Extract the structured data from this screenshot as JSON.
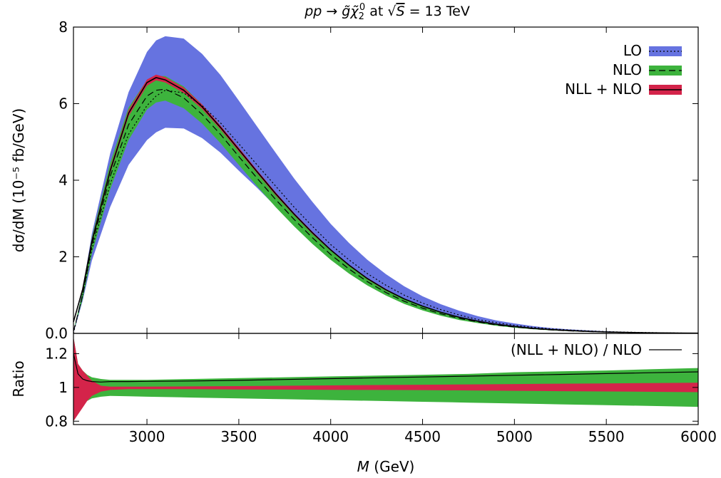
{
  "chart_data": [
    {
      "type": "area",
      "title": "pp → g̃χ̃₂⁰ at √S = 13 TeV",
      "title_parts": {
        "process": "pp → g̃χ̃",
        "sub": "2",
        "sup": "0",
        "at": " at ",
        "sqrt_symbol": "√",
        "energy_var": "S",
        "energy_value": " = 13 TeV"
      },
      "xlabel": "M (GeV)",
      "xlabel_parts": {
        "var": "M",
        "unit": " (GeV)"
      },
      "ylabel": "dσ/dM (10⁻⁵ fb/GeV)",
      "xlim": [
        2600,
        6000
      ],
      "ylim": [
        0,
        8
      ],
      "x_ticks": [
        "3000",
        "3500",
        "4000",
        "4500",
        "5000",
        "5500",
        "6000"
      ],
      "y_ticks": [
        "0.0",
        "2",
        "4",
        "6",
        "8"
      ],
      "legend_position": "top-right",
      "x": [
        2600,
        2650,
        2700,
        2800,
        2900,
        3000,
        3050,
        3100,
        3200,
        3300,
        3400,
        3500,
        3600,
        3700,
        3800,
        3900,
        4000,
        4100,
        4200,
        4300,
        4400,
        4500,
        4600,
        4700,
        4800,
        4900,
        5000,
        5100,
        5200,
        5300,
        5400,
        5500,
        5600,
        5700,
        5800,
        5900,
        6000
      ],
      "series": [
        {
          "name": "LO",
          "color": "#6673e0",
          "line_style": "dotted",
          "center": [
            0.0,
            1.0,
            2.2,
            3.9,
            5.2,
            5.95,
            6.2,
            6.35,
            6.28,
            5.95,
            5.5,
            4.95,
            4.4,
            3.85,
            3.3,
            2.8,
            2.32,
            1.92,
            1.56,
            1.26,
            1.0,
            0.79,
            0.62,
            0.48,
            0.36,
            0.28,
            0.21,
            0.16,
            0.12,
            0.09,
            0.065,
            0.047,
            0.034,
            0.024,
            0.016,
            0.01,
            0.006
          ],
          "lower": [
            0.0,
            0.85,
            1.9,
            3.3,
            4.4,
            5.05,
            5.25,
            5.37,
            5.35,
            5.1,
            4.72,
            4.25,
            3.8,
            3.32,
            2.86,
            2.43,
            2.02,
            1.67,
            1.36,
            1.1,
            0.87,
            0.69,
            0.54,
            0.42,
            0.32,
            0.24,
            0.18,
            0.14,
            0.1,
            0.075,
            0.055,
            0.04,
            0.028,
            0.02,
            0.013,
            0.008,
            0.005
          ],
          "upper": [
            0.0,
            1.15,
            2.6,
            4.7,
            6.3,
            7.35,
            7.65,
            7.76,
            7.7,
            7.3,
            6.75,
            6.08,
            5.4,
            4.72,
            4.05,
            3.44,
            2.86,
            2.36,
            1.92,
            1.55,
            1.23,
            0.97,
            0.76,
            0.59,
            0.45,
            0.34,
            0.26,
            0.19,
            0.14,
            0.105,
            0.078,
            0.056,
            0.04,
            0.028,
            0.019,
            0.012,
            0.007
          ]
        },
        {
          "name": "NLO",
          "color": "#3db33d",
          "line_style": "dashed",
          "center": [
            0.05,
            1.0,
            2.3,
            4.1,
            5.45,
            6.2,
            6.35,
            6.38,
            6.15,
            5.72,
            5.2,
            4.62,
            4.05,
            3.5,
            2.98,
            2.5,
            2.06,
            1.68,
            1.35,
            1.07,
            0.84,
            0.66,
            0.51,
            0.39,
            0.3,
            0.22,
            0.165,
            0.122,
            0.09,
            0.066,
            0.048,
            0.035,
            0.025,
            0.018,
            0.012,
            0.008,
            0.005
          ],
          "lower": [
            0.04,
            0.9,
            2.08,
            3.76,
            5.05,
            5.85,
            6.03,
            6.08,
            5.88,
            5.48,
            4.97,
            4.4,
            3.84,
            3.3,
            2.8,
            2.34,
            1.92,
            1.56,
            1.25,
            0.99,
            0.77,
            0.6,
            0.46,
            0.35,
            0.27,
            0.2,
            0.148,
            0.109,
            0.08,
            0.058,
            0.042,
            0.03,
            0.022,
            0.015,
            0.01,
            0.007,
            0.004
          ],
          "upper": [
            0.06,
            1.1,
            2.5,
            4.45,
            5.9,
            6.62,
            6.72,
            6.72,
            6.45,
            5.98,
            5.43,
            4.83,
            4.24,
            3.68,
            3.14,
            2.65,
            2.19,
            1.79,
            1.45,
            1.15,
            0.91,
            0.71,
            0.55,
            0.42,
            0.32,
            0.24,
            0.18,
            0.134,
            0.099,
            0.073,
            0.053,
            0.038,
            0.027,
            0.019,
            0.013,
            0.009,
            0.005
          ]
        },
        {
          "name": "NLL + NLO",
          "color": "#d4244a",
          "line_style": "solid",
          "center": [
            0.3,
            1.15,
            2.4,
            4.25,
            5.75,
            6.55,
            6.68,
            6.62,
            6.35,
            5.92,
            5.38,
            4.8,
            4.22,
            3.65,
            3.12,
            2.63,
            2.18,
            1.78,
            1.43,
            1.14,
            0.9,
            0.71,
            0.55,
            0.42,
            0.32,
            0.24,
            0.18,
            0.133,
            0.098,
            0.072,
            0.053,
            0.038,
            0.027,
            0.019,
            0.013,
            0.009,
            0.005
          ],
          "lower": [
            0.27,
            1.1,
            2.34,
            4.18,
            5.67,
            6.47,
            6.61,
            6.55,
            6.28,
            5.86,
            5.33,
            4.75,
            4.18,
            3.61,
            3.09,
            2.6,
            2.16,
            1.76,
            1.41,
            1.12,
            0.89,
            0.7,
            0.54,
            0.415,
            0.315,
            0.236,
            0.177,
            0.13,
            0.096,
            0.07,
            0.052,
            0.037,
            0.026,
            0.018,
            0.0125,
            0.0085,
            0.0048
          ],
          "upper": [
            0.33,
            1.2,
            2.46,
            4.32,
            5.83,
            6.63,
            6.76,
            6.69,
            6.42,
            5.98,
            5.43,
            4.85,
            4.26,
            3.69,
            3.15,
            2.66,
            2.2,
            1.8,
            1.45,
            1.16,
            0.91,
            0.72,
            0.56,
            0.425,
            0.325,
            0.244,
            0.183,
            0.136,
            0.1,
            0.074,
            0.054,
            0.039,
            0.028,
            0.02,
            0.0135,
            0.0095,
            0.0052
          ]
        }
      ]
    },
    {
      "type": "area",
      "ylabel": "Ratio",
      "xlabel": "M (GeV)",
      "xlim": [
        2600,
        6000
      ],
      "ylim": [
        0.78,
        1.32
      ],
      "y_ticks": [
        "0.8",
        "1",
        "1.2"
      ],
      "legend_position": "top-right",
      "x": [
        2600,
        2625,
        2650,
        2675,
        2700,
        2750,
        2800,
        2900,
        3000,
        3250,
        3500,
        3750,
        4000,
        4250,
        4500,
        4750,
        5000,
        5250,
        5500,
        5750,
        6000
      ],
      "series": [
        {
          "name": "",
          "color": "#3db33d",
          "role": "NLO uncertainty band",
          "lower": [
            0.8,
            0.86,
            0.9,
            0.92,
            0.935,
            0.945,
            0.95,
            0.948,
            0.945,
            0.94,
            0.935,
            0.93,
            0.925,
            0.92,
            0.915,
            0.91,
            0.905,
            0.9,
            0.895,
            0.89,
            0.885
          ],
          "upper": [
            1.3,
            1.14,
            1.1,
            1.075,
            1.06,
            1.05,
            1.045,
            1.045,
            1.045,
            1.05,
            1.055,
            1.06,
            1.065,
            1.07,
            1.075,
            1.08,
            1.09,
            1.095,
            1.1,
            1.108,
            1.115
          ]
        },
        {
          "name": "",
          "color": "#d4244a",
          "role": "NLL + NLO uncertainty band",
          "lower": [
            0.8,
            0.84,
            0.88,
            0.92,
            0.95,
            0.975,
            0.985,
            0.99,
            0.99,
            0.99,
            0.988,
            0.987,
            0.986,
            0.985,
            0.984,
            0.982,
            0.98,
            0.978,
            0.976,
            0.974,
            0.972
          ],
          "upper": [
            1.3,
            1.14,
            1.1,
            1.07,
            1.04,
            1.01,
            1.005,
            1.005,
            1.005,
            1.006,
            1.008,
            1.01,
            1.012,
            1.014,
            1.016,
            1.018,
            1.02,
            1.022,
            1.024,
            1.026,
            1.028
          ]
        },
        {
          "name": "(NLL + NLO) / NLO",
          "color": "#000000",
          "line_style": "solid",
          "values": [
            1.2,
            1.08,
            1.05,
            1.04,
            1.035,
            1.032,
            1.035,
            1.035,
            1.036,
            1.038,
            1.042,
            1.047,
            1.052,
            1.057,
            1.062,
            1.067,
            1.072,
            1.077,
            1.082,
            1.087,
            1.092
          ]
        }
      ]
    }
  ]
}
